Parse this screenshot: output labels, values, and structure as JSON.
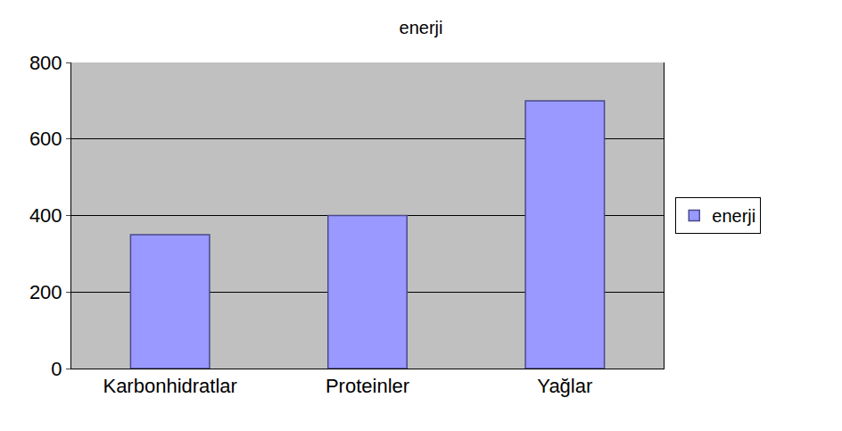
{
  "chart_data": {
    "type": "bar",
    "title": "enerji",
    "categories": [
      "Karbonhidratlar",
      "Proteinler",
      "Yağlar"
    ],
    "series": [
      {
        "name": "enerji",
        "color": "#9999ff",
        "values": [
          350,
          400,
          700
        ]
      }
    ],
    "ylim": [
      0,
      800
    ],
    "yticks": [
      0,
      200,
      400,
      600,
      800
    ],
    "grid": true,
    "legend": "right"
  }
}
